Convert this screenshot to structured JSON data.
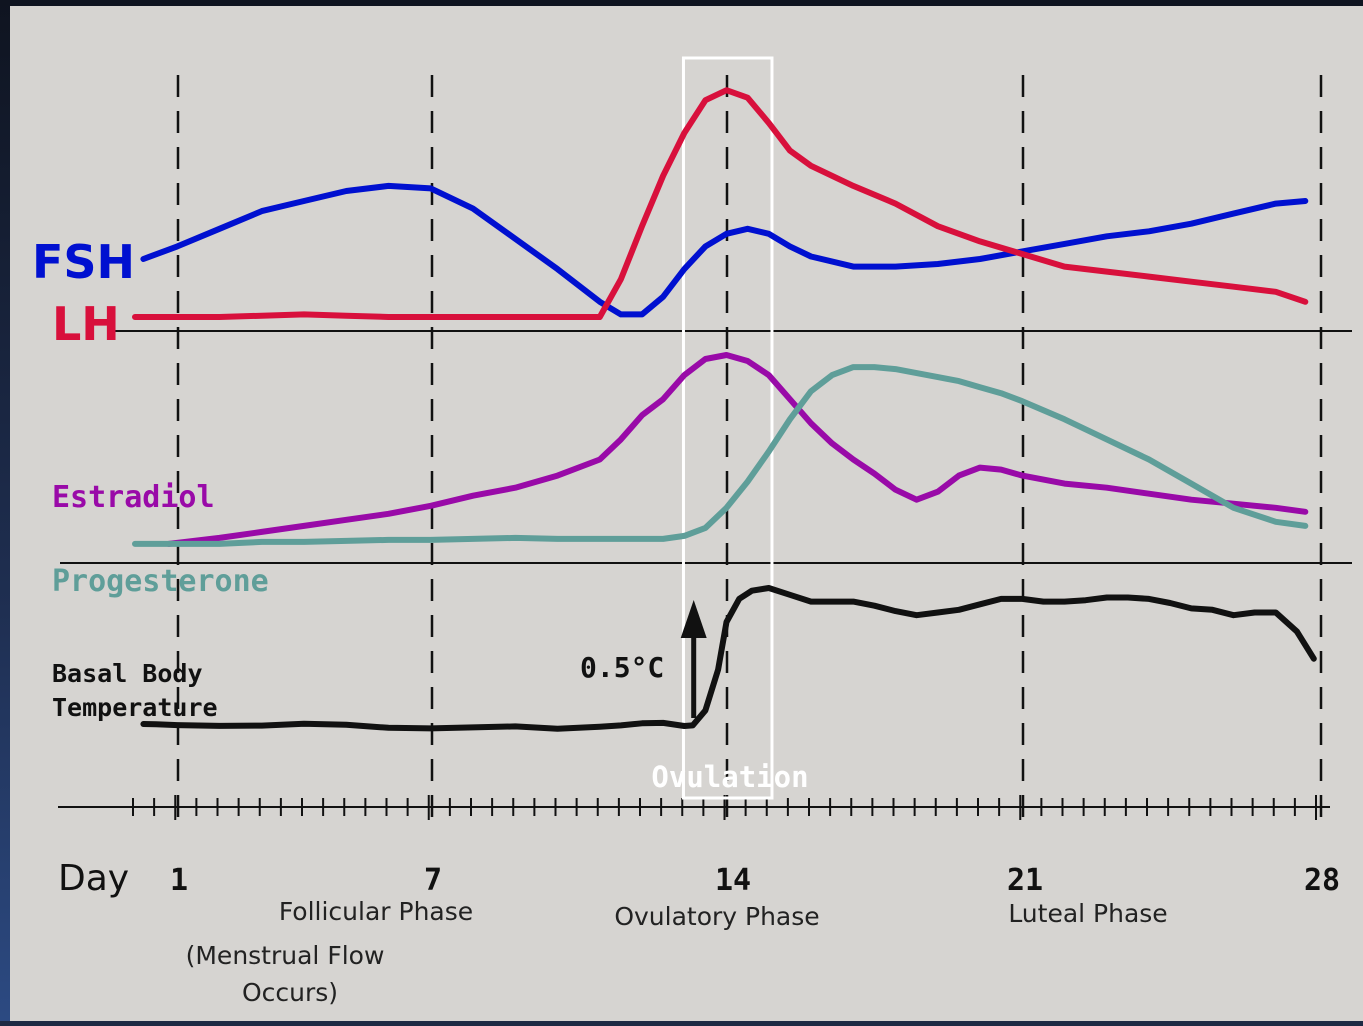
{
  "chart_data": {
    "type": "line",
    "colors": {
      "FSH": "#0010d0",
      "LH": "#d8103c",
      "Estradiol": "#990aa8",
      "Progesterone": "#5f9e99",
      "Basal Body Temperature": "#111111",
      "ovulation_box": "#ffffff"
    },
    "x_axis": {
      "label": "Day",
      "range": [
        0,
        28.3
      ],
      "ticks": [
        {
          "day": 1,
          "label": "1"
        },
        {
          "day": 7,
          "label": "7"
        },
        {
          "day": 14,
          "label": "14"
        },
        {
          "day": 21,
          "label": "21"
        },
        {
          "day": 28,
          "label": "28"
        }
      ],
      "minor_tick_days": [
        0,
        0.5,
        1,
        1.5,
        2,
        2.5,
        3,
        3.5,
        4,
        4.5,
        5,
        5.5,
        6,
        6.5,
        7,
        7.5,
        8,
        8.5,
        9,
        9.5,
        10,
        10.5,
        11,
        11.5,
        12,
        12.5,
        13,
        13.5,
        14,
        14.5,
        15,
        15.5,
        16,
        16.5,
        17,
        17.5,
        18,
        18.5,
        19,
        19.5,
        20,
        20.5,
        21,
        21.5,
        22,
        22.5,
        23,
        23.5,
        24,
        24.5,
        25,
        25.5,
        26,
        26.5,
        27,
        27.5,
        28
      ],
      "dashed_gridline_days": [
        1,
        7,
        14,
        21,
        28
      ]
    },
    "phases": [
      {
        "name": "Follicular Phase",
        "note_line1": "(Menstrual Flow",
        "note_line2": "Occurs)"
      },
      {
        "name": "Ovulatory Phase"
      },
      {
        "name": "Luteal Phase"
      }
    ],
    "ovulation": {
      "label": "Ovulation",
      "day_start": 13.1,
      "day_end": 15.1
    },
    "panels": [
      {
        "id": "gonadotropins",
        "series": [
          {
            "name": "FSH",
            "label": "FSH",
            "x": [
              0.2,
              1,
              2,
              3,
              4,
              5,
              6,
              7,
              8,
              9,
              10,
              11,
              11.5,
              12,
              12.5,
              13,
              13.5,
              14,
              14.5,
              15,
              15.5,
              16,
              17,
              18,
              19,
              20,
              21,
              22,
              23,
              24,
              25,
              26,
              27,
              27.7
            ],
            "y": [
              25,
              30,
              37,
              44,
              48,
              52,
              54,
              53,
              45,
              33,
              21,
              8,
              3,
              3,
              10,
              21,
              30,
              35,
              37,
              35,
              30,
              26,
              22,
              22,
              23,
              25,
              28,
              31,
              34,
              36,
              39,
              43,
              47,
              48
            ]
          },
          {
            "name": "LH",
            "label": "LH",
            "x": [
              0,
              1,
              2,
              3,
              4,
              5,
              6,
              7,
              8,
              9,
              10,
              10.5,
              11,
              11.5,
              12,
              12.5,
              13,
              13.5,
              14,
              14.5,
              15,
              15.5,
              16,
              17,
              18,
              19,
              20,
              21,
              22,
              23,
              24,
              25,
              26,
              27,
              27.7
            ],
            "y": [
              2,
              2,
              2,
              2.5,
              3,
              2.5,
              2,
              2,
              2,
              2,
              2,
              2,
              2,
              17,
              38,
              58,
              75,
              88,
              92,
              89,
              79,
              68,
              62,
              54,
              47,
              38,
              32,
              27,
              22,
              20,
              18,
              16,
              14,
              12,
              8
            ]
          }
        ]
      },
      {
        "id": "steroids",
        "series": [
          {
            "name": "Estradiol",
            "label": "Estradiol",
            "x": [
              0.8,
              1,
              2,
              3,
              4,
              5,
              6,
              7,
              8,
              9,
              10,
              11,
              11.5,
              12,
              12.5,
              13,
              13.5,
              14,
              14.5,
              15,
              15.5,
              16,
              16.5,
              17,
              17.5,
              18,
              18.5,
              19,
              19.5,
              20,
              20.5,
              21,
              22,
              23,
              24,
              25,
              26,
              27,
              27.7
            ],
            "y": [
              6,
              6.5,
              9,
              12,
              15,
              18,
              21,
              25,
              30,
              34,
              40,
              48,
              58,
              70,
              78,
              90,
              98,
              100,
              97,
              90,
              78,
              66,
              56,
              48,
              41,
              33,
              28,
              32,
              40,
              44,
              43,
              40,
              36,
              34,
              31,
              28,
              26,
              24,
              22
            ]
          },
          {
            "name": "Progesterone",
            "label": "Progesterone",
            "x": [
              0,
              1,
              2,
              3,
              4,
              5,
              6,
              7,
              8,
              9,
              10,
              11,
              11.5,
              12,
              12.5,
              13,
              13.5,
              14,
              14.5,
              15,
              15.5,
              16,
              16.5,
              17,
              17.5,
              18,
              18.5,
              19,
              19.5,
              20,
              20.5,
              21,
              22,
              23,
              24,
              25,
              26,
              27,
              27.7
            ],
            "y": [
              6,
              6,
              6,
              7,
              7,
              7.5,
              8,
              8,
              8.5,
              9,
              8.5,
              8.5,
              8.5,
              8.5,
              8.5,
              10,
              14,
              24,
              37,
              52,
              68,
              82,
              90,
              94,
              94,
              93,
              91,
              89,
              87,
              84,
              81,
              77,
              68,
              58,
              48,
              36,
              24,
              17,
              15
            ]
          }
        ]
      },
      {
        "id": "temperature",
        "series": [
          {
            "name": "Basal Body Temperature",
            "label_line1": "Basal Body",
            "label_line2": "Temperature",
            "x": [
              0.2,
              0.5,
              1,
              2,
              3,
              4,
              5,
              6,
              7,
              8,
              9,
              10,
              11,
              11.5,
              12,
              12.5,
              13,
              13.2,
              13.5,
              13.8,
              14,
              14.3,
              14.6,
              15,
              15.5,
              16,
              16.5,
              17,
              17.5,
              18,
              18.5,
              19,
              19.5,
              20,
              20.5,
              21,
              21.5,
              22,
              22.5,
              23,
              23.5,
              24,
              24.5,
              25,
              25.5,
              26,
              26.5,
              27,
              27.5,
              27.9
            ],
            "y": [
              0,
              -0.2,
              -0.8,
              -1.4,
              -1.2,
              0.2,
              -0.6,
              -2.8,
              -3.2,
              -2.5,
              -1.8,
              -3.5,
              -2.0,
              -1.0,
              0.5,
              0.8,
              -1.5,
              -1.0,
              10,
              40,
              75,
              92,
              98,
              100,
              95,
              90,
              90,
              90,
              87,
              83,
              80,
              82,
              84,
              88,
              92,
              92,
              90,
              90,
              91,
              93,
              93,
              92,
              89,
              85,
              84,
              80,
              82,
              82,
              68,
              48
            ]
          }
        ],
        "annotation": {
          "label": "0.5°C",
          "arrow_day": 13.2
        }
      }
    ]
  }
}
